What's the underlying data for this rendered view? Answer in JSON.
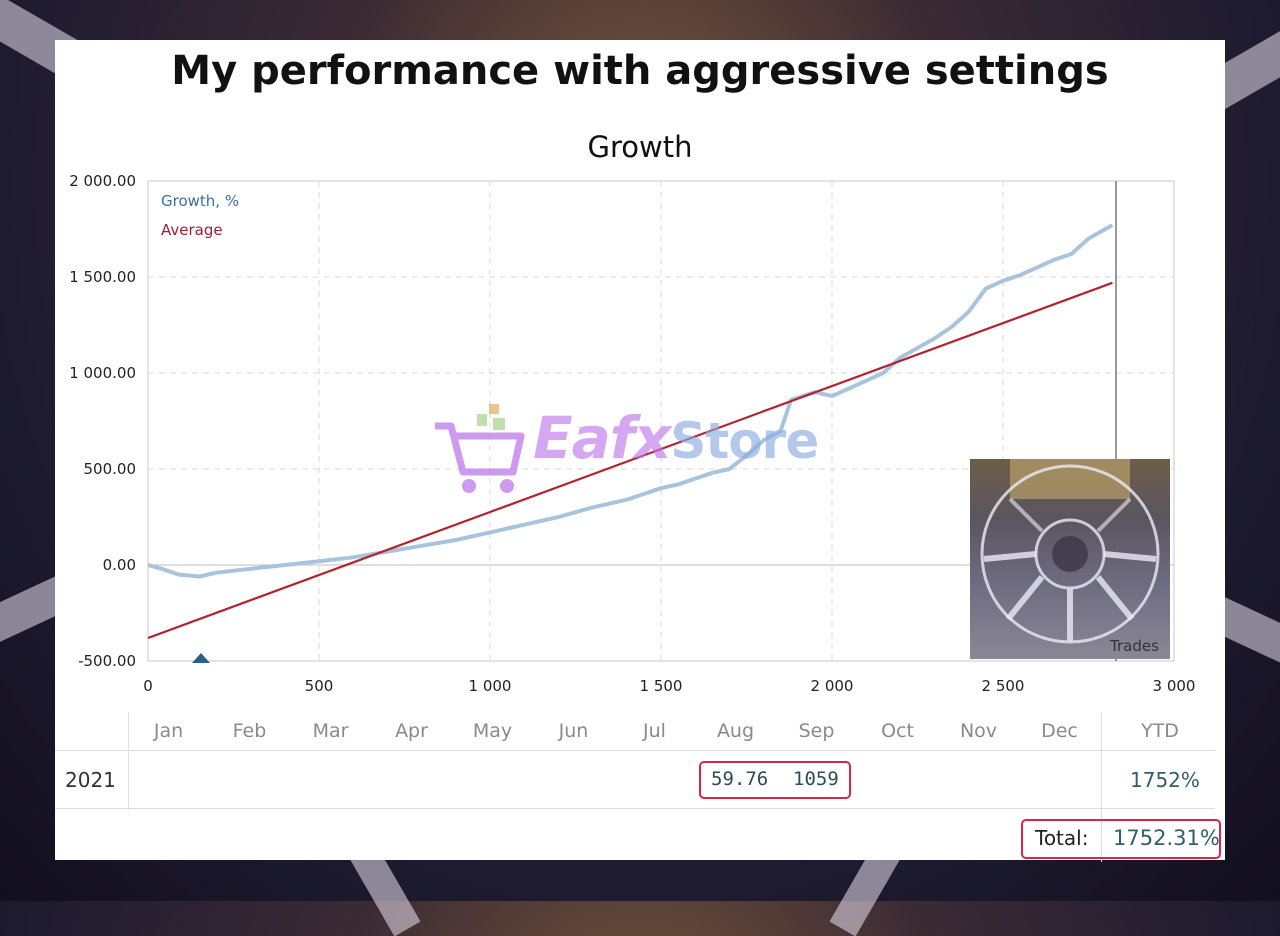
{
  "title": "My performance with aggressive settings",
  "watermark": {
    "brand_text": "Eafx",
    "brand_text_2": "Store",
    "icon": "shopping-cart-icon"
  },
  "colors": {
    "growth": "#a8c4dc",
    "average": "#b3232f",
    "highlight": "#d6264a",
    "text_value": "#2f5f6f"
  },
  "chart_data": {
    "type": "line",
    "title": "Growth",
    "xlabel": "",
    "ylabel": "",
    "xlim": [
      0,
      3000
    ],
    "ylim": [
      -500,
      2000
    ],
    "x_ticks": [
      "0",
      "500",
      "1 000",
      "1 500",
      "2 000",
      "2 500",
      "3 000"
    ],
    "y_ticks": [
      "2 000.00",
      "1 500.00",
      "1 000.00",
      "500.00",
      "0.00",
      "-500.00"
    ],
    "grid": true,
    "legend": "top-left",
    "marker_label": "Trades",
    "series": [
      {
        "name": "Growth, %",
        "x": [
          0,
          40,
          90,
          150,
          200,
          300,
          400,
          500,
          600,
          700,
          800,
          900,
          1000,
          1100,
          1200,
          1300,
          1400,
          1500,
          1550,
          1600,
          1650,
          1700,
          1750,
          1800,
          1850,
          1880,
          1950,
          2000,
          2050,
          2100,
          2150,
          2200,
          2300,
          2350,
          2400,
          2450,
          2500,
          2550,
          2600,
          2650,
          2700,
          2750,
          2800,
          2820
        ],
        "y": [
          0,
          -20,
          -50,
          -60,
          -40,
          -20,
          0,
          20,
          40,
          70,
          100,
          130,
          170,
          210,
          250,
          300,
          340,
          400,
          420,
          450,
          480,
          500,
          570,
          650,
          700,
          860,
          900,
          880,
          920,
          960,
          1000,
          1080,
          1180,
          1240,
          1320,
          1440,
          1480,
          1510,
          1550,
          1590,
          1620,
          1700,
          1750,
          1770
        ]
      },
      {
        "name": "Average",
        "x": [
          0,
          2820
        ],
        "y": [
          -380,
          1470
        ]
      }
    ]
  },
  "table": {
    "months": [
      "Jan",
      "Feb",
      "Mar",
      "Apr",
      "May",
      "Jun",
      "Jul",
      "Aug",
      "Sep",
      "Oct",
      "Nov",
      "Dec"
    ],
    "ytd_header": "YTD",
    "row": {
      "year": "2021",
      "aug": "59.76",
      "sep": "1059",
      "ytd": "1752%"
    },
    "total_label": "Total:",
    "total_value": "1752.31%"
  }
}
